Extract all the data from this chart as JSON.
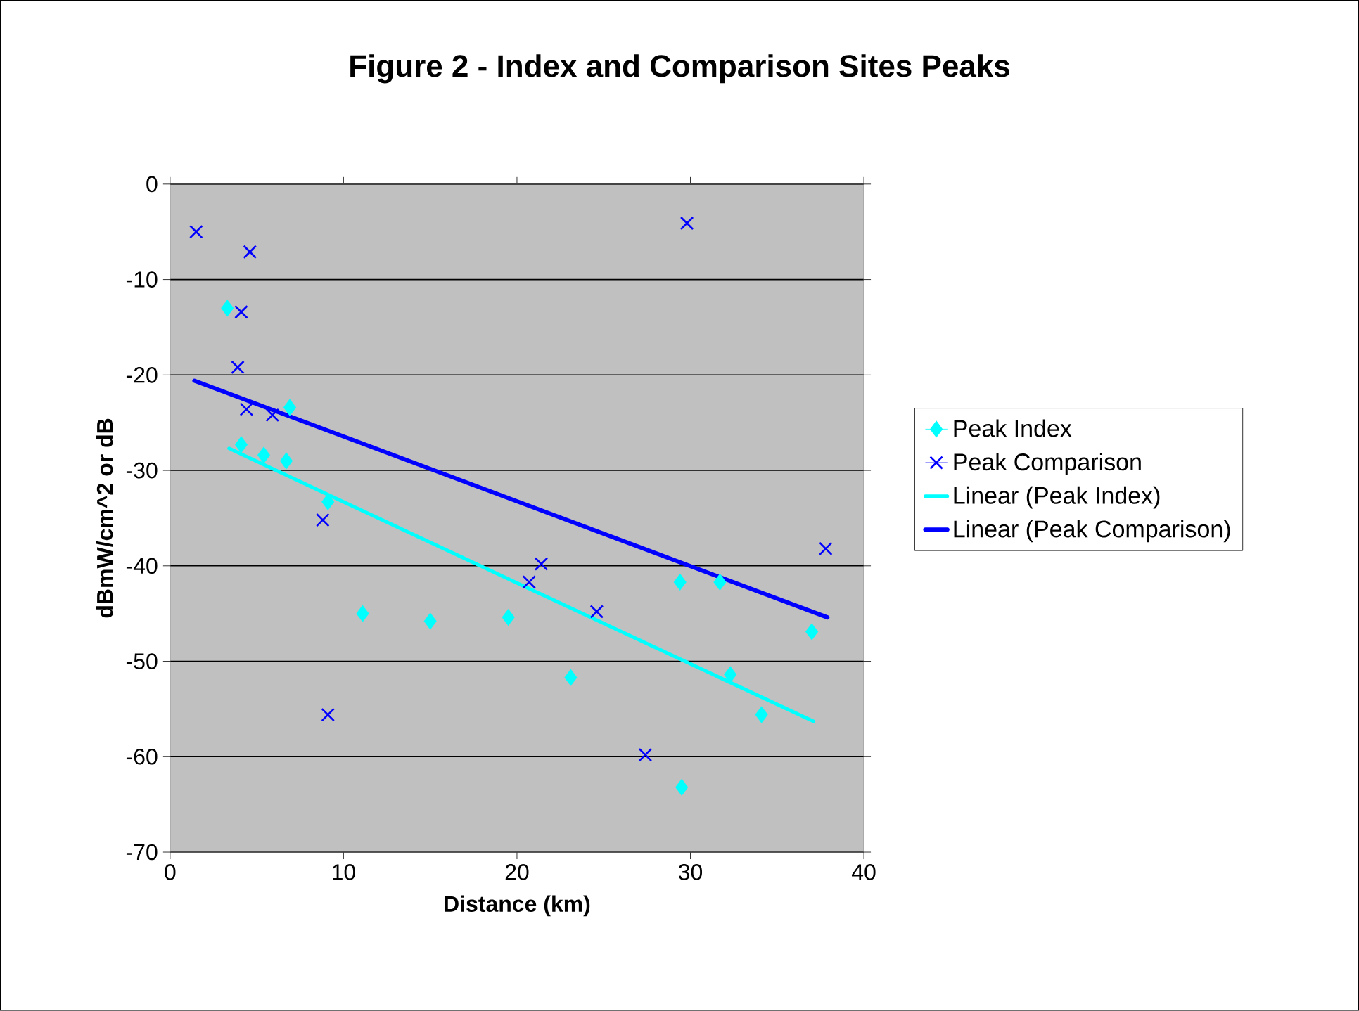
{
  "chart_data": {
    "type": "scatter",
    "title": "Figure 2 - Index and Comparison Sites Peaks",
    "xlabel": "Distance (km)",
    "ylabel": "dBmW/cm^2 or dB",
    "xlim": [
      0,
      40
    ],
    "xticks": [
      0,
      10,
      20,
      30,
      40
    ],
    "ylim": [
      -70,
      0
    ],
    "yticks": [
      -70,
      -60,
      -50,
      -40,
      -30,
      -20,
      -10,
      0
    ],
    "grid": "y",
    "legend": "right",
    "series": [
      {
        "name": "Peak Index",
        "marker": "diamond",
        "color": "#00ffff",
        "x": [
          3.3,
          4.1,
          5.4,
          6.7,
          6.9,
          9.1,
          11.1,
          15.0,
          19.5,
          23.1,
          29.4,
          31.7,
          32.3,
          34.1,
          37.0,
          29.5
        ],
        "values": [
          -13.0,
          -27.3,
          -28.4,
          -29.0,
          -23.4,
          -33.3,
          -45.0,
          -45.8,
          -45.4,
          -51.7,
          -41.7,
          -41.7,
          -51.4,
          -55.6,
          -46.9,
          -63.2
        ]
      },
      {
        "name": "Peak Comparison",
        "marker": "cross",
        "color": "#0000ff",
        "x": [
          1.5,
          4.6,
          4.1,
          3.9,
          4.4,
          5.9,
          8.8,
          9.1,
          20.7,
          21.4,
          24.6,
          27.4,
          29.8,
          37.8
        ],
        "values": [
          -5.0,
          -7.1,
          -13.4,
          -19.2,
          -23.6,
          -24.2,
          -35.2,
          -55.6,
          -41.7,
          -39.8,
          -44.8,
          -59.8,
          -4.1,
          -38.2
        ]
      },
      {
        "name": "Linear (Peak Index)",
        "type": "line",
        "marker": "none",
        "line_style": "solid",
        "color": "#00ffff",
        "x": [
          3.4,
          37.1
        ],
        "values": [
          -27.7,
          -56.3
        ]
      },
      {
        "name": "Linear (Peak Comparison)",
        "type": "line",
        "marker": "none",
        "line_style": "solid",
        "color": "#0000ff",
        "x": [
          1.4,
          37.9
        ],
        "values": [
          -20.6,
          -45.4
        ]
      }
    ]
  }
}
